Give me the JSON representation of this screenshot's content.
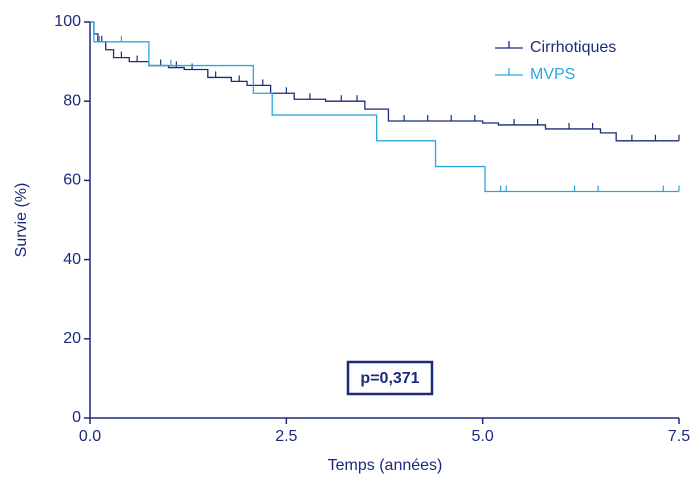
{
  "chart_data": {
    "type": "step",
    "xlabel": "Temps (années)",
    "ylabel": "Survie (%)",
    "annotation": "p=0,371",
    "xlim": [
      0,
      7.5
    ],
    "ylim": [
      0,
      100
    ],
    "xticks": [
      {
        "value": 0,
        "label": "0.0"
      },
      2.5,
      {
        "value": 5,
        "label": "5.0"
      },
      7.5
    ],
    "yticks": [
      0,
      20,
      40,
      60,
      80,
      100
    ],
    "legend": "top-right",
    "series": [
      {
        "name": "Cirrhotiques",
        "color": "#1b2a7c",
        "x": [
          0,
          0.05,
          0.1,
          0.2,
          0.3,
          0.5,
          0.75,
          1.0,
          1.2,
          1.5,
          1.8,
          2.0,
          2.3,
          2.6,
          3.0,
          3.5,
          3.8,
          5.0,
          5.2,
          5.8,
          6.5,
          6.7,
          7.5
        ],
        "values": [
          100,
          97,
          95,
          93,
          91,
          90,
          89,
          88.5,
          88,
          86,
          85,
          84,
          82,
          80.5,
          80,
          78,
          75,
          74.5,
          74,
          73,
          72,
          70,
          70
        ],
        "censored": [
          0.15,
          0.4,
          0.6,
          0.9,
          1.1,
          1.3,
          1.6,
          1.9,
          2.2,
          2.5,
          2.8,
          3.2,
          3.4,
          4.0,
          4.3,
          4.6,
          4.9,
          5.4,
          5.7,
          6.1,
          6.4,
          6.9,
          7.2,
          7.5
        ]
      },
      {
        "name": "MVPS",
        "color": "#2aa7df",
        "x": [
          0,
          0.05,
          0.75,
          2.08,
          2.32,
          3.65,
          4.4,
          5.03,
          7.5
        ],
        "values": [
          100,
          95,
          89,
          82,
          76.5,
          70,
          63.5,
          57.2,
          57.2
        ],
        "censored": [
          0.12,
          0.4,
          1.03,
          5.23,
          5.3,
          6.17,
          6.47,
          7.3,
          7.5
        ]
      }
    ]
  }
}
